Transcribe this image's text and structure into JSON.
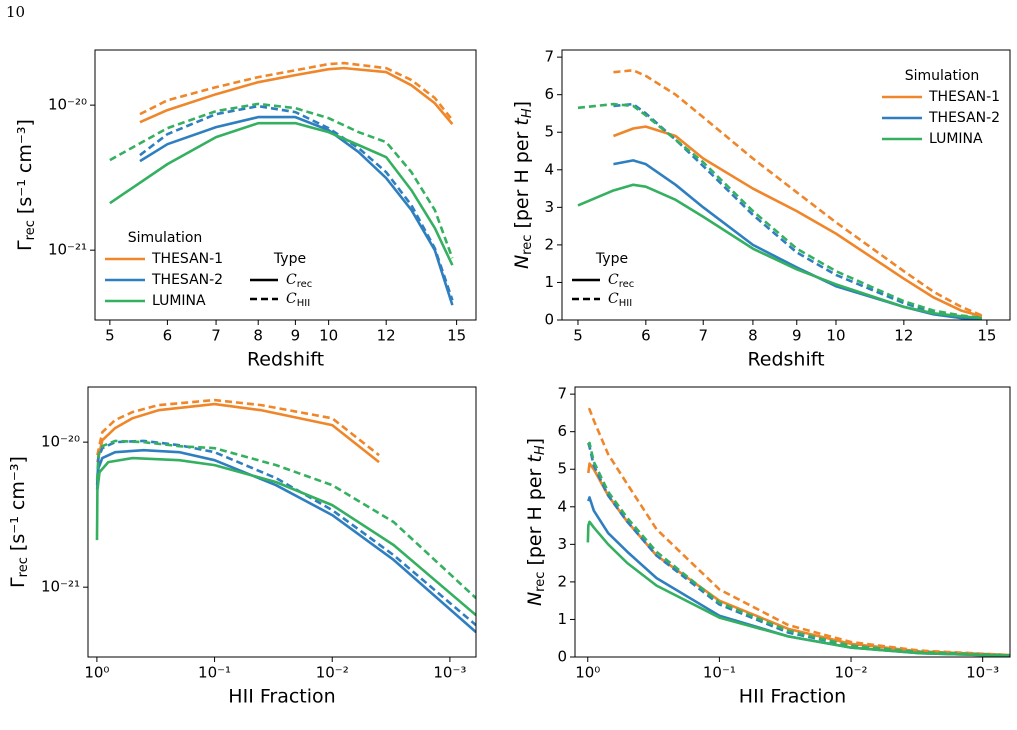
{
  "page_number": "10",
  "chart_data": [
    {
      "type": "line",
      "xlabel": "Redshift",
      "ylabel": [
        {
          "text": "Γ"
        },
        {
          "text": "rec",
          "sub": true
        },
        {
          "text": " [s⁻¹ cm⁻³]"
        }
      ],
      "xscale": "log",
      "yscale": "log",
      "xlim": [
        4.77,
        15.95
      ],
      "ylim": [
        3.3e-22,
        2.4e-20
      ],
      "xticks": [
        5,
        6,
        7,
        8,
        9,
        10,
        12,
        15
      ],
      "yticks": [
        {
          "value": 1e-21,
          "label": "10⁻²¹"
        },
        {
          "value": 1e-20,
          "label": "10⁻²⁰"
        }
      ],
      "legend": {
        "title": "Simulation",
        "loc": "lower left"
      },
      "type_legend": {
        "title": "Type",
        "loc": "lower center",
        "entries": [
          {
            "symbol": "C",
            "sub": "rec",
            "linestyle": "solid"
          },
          {
            "symbol": "C",
            "sub": "HII",
            "linestyle": "dashed"
          }
        ]
      },
      "series": [
        {
          "name": "THESAN-1",
          "color": "#f0862a",
          "linestyle": "solid",
          "x": [
            5.5,
            6,
            7,
            8,
            9,
            10,
            10.5,
            12,
            13,
            14,
            14.8
          ],
          "values": [
            7.63e-21,
            9.24e-21,
            1.19e-20,
            1.44e-20,
            1.61e-20,
            1.77e-20,
            1.8e-20,
            1.69e-20,
            1.37e-20,
            1.03e-20,
            7.4e-21
          ]
        },
        {
          "name": "THESAN-1",
          "color": "#f0862a",
          "linestyle": "dashed",
          "x": [
            5.5,
            6,
            7,
            8,
            9,
            10,
            10.5,
            12,
            13,
            14,
            14.8
          ],
          "values": [
            8.67e-21,
            1.08e-20,
            1.33e-20,
            1.56e-20,
            1.74e-20,
            1.92e-20,
            1.95e-20,
            1.8e-20,
            1.49e-20,
            1.12e-20,
            7.88e-21
          ]
        },
        {
          "name": "THESAN-2",
          "color": "#2f7fc0",
          "linestyle": "solid",
          "x": [
            5.5,
            6,
            7,
            8,
            9,
            10,
            11,
            12,
            13,
            14,
            14.8
          ],
          "values": [
            4.11e-21,
            5.38e-21,
            7.05e-21,
            8.27e-21,
            8.27e-21,
            6.72e-21,
            4.74e-21,
            3.14e-21,
            1.89e-21,
            1e-21,
            4.18e-22
          ]
        },
        {
          "name": "THESAN-2",
          "color": "#2f7fc0",
          "linestyle": "dashed",
          "x": [
            5.5,
            6,
            7,
            8,
            9,
            10,
            11,
            12,
            13,
            14,
            14.8
          ],
          "values": [
            4.52e-21,
            6.31e-21,
            8.67e-21,
            9.84e-21,
            8.95e-21,
            6.94e-21,
            5.05e-21,
            3.45e-21,
            2.04e-21,
            1.03e-21,
            4.52e-22
          ]
        },
        {
          "name": "LUMINA",
          "color": "#35b060",
          "linestyle": "solid",
          "x": [
            5,
            6,
            7,
            8,
            9,
            10,
            11,
            12,
            13,
            14,
            14.8
          ],
          "values": [
            2.11e-21,
            3.92e-21,
            6.02e-21,
            7.51e-21,
            7.51e-21,
            6.51e-21,
            5.3e-21,
            4.38e-21,
            2.59e-21,
            1.42e-21,
            7.88e-22
          ]
        },
        {
          "name": "LUMINA",
          "color": "#35b060",
          "linestyle": "dashed",
          "x": [
            5,
            6,
            7,
            8,
            9,
            10,
            11,
            12,
            13,
            14,
            14.8
          ],
          "values": [
            4.18e-21,
            6.94e-21,
            9.09e-21,
            1.02e-20,
            9.53e-21,
            8.13e-21,
            6.51e-21,
            5.56e-21,
            3.45e-21,
            1.89e-21,
            8.8e-22
          ]
        }
      ]
    },
    {
      "type": "line",
      "xlabel": "Redshift",
      "ylabel": [
        {
          "text": "N",
          "italic": true
        },
        {
          "text": "rec",
          "sub": true
        },
        {
          "text": " [per H per "
        },
        {
          "text": "t",
          "italic": true
        },
        {
          "text": "H",
          "sub": true,
          "italic": true
        },
        {
          "text": "]"
        }
      ],
      "xscale": "log",
      "yscale": "linear",
      "xlim": [
        4.79,
        15.96
      ],
      "ylim": [
        0,
        7.19
      ],
      "xticks": [
        5,
        6,
        7,
        8,
        9,
        10,
        12,
        15
      ],
      "yticks": [
        0,
        1,
        2,
        3,
        4,
        5,
        6,
        7
      ],
      "legend": {
        "title": "Simulation",
        "loc": "upper right"
      },
      "type_legend": {
        "title": "Type",
        "loc": "lower left",
        "entries": [
          {
            "symbol": "C",
            "sub": "rec",
            "linestyle": "solid"
          },
          {
            "symbol": "C",
            "sub": "HII",
            "linestyle": "dashed"
          }
        ]
      },
      "series": [
        {
          "name": "THESAN-1",
          "color": "#f0862a",
          "linestyle": "solid",
          "x": [
            5.5,
            5.8,
            6,
            6.5,
            7,
            8,
            9,
            10,
            12,
            13,
            14,
            14.8
          ],
          "values": [
            4.9,
            5.1,
            5.15,
            4.9,
            4.3,
            3.5,
            2.9,
            2.3,
            1.1,
            0.6,
            0.25,
            0.1
          ]
        },
        {
          "name": "THESAN-1",
          "color": "#f0862a",
          "linestyle": "dashed",
          "x": [
            5.5,
            5.8,
            6,
            6.5,
            7,
            8,
            9,
            10,
            12,
            13,
            14,
            14.8
          ],
          "values": [
            6.6,
            6.65,
            6.5,
            6.0,
            5.4,
            4.3,
            3.4,
            2.6,
            1.3,
            0.75,
            0.35,
            0.12
          ]
        },
        {
          "name": "THESAN-2",
          "color": "#2f7fc0",
          "linestyle": "solid",
          "x": [
            5.5,
            5.8,
            6,
            6.5,
            7,
            8,
            9,
            10,
            12,
            13,
            14,
            14.8
          ],
          "values": [
            4.15,
            4.25,
            4.15,
            3.6,
            3.0,
            2.0,
            1.4,
            0.9,
            0.35,
            0.15,
            0.05,
            0.02
          ]
        },
        {
          "name": "THESAN-2",
          "color": "#2f7fc0",
          "linestyle": "dashed",
          "x": [
            5.5,
            5.8,
            6,
            6.5,
            7,
            8,
            9,
            10,
            12,
            13,
            14,
            14.8
          ],
          "values": [
            5.7,
            5.75,
            5.5,
            4.8,
            4.1,
            2.8,
            1.8,
            1.2,
            0.45,
            0.2,
            0.08,
            0.03
          ]
        },
        {
          "name": "LUMINA",
          "color": "#35b060",
          "linestyle": "solid",
          "x": [
            5,
            5.5,
            5.8,
            6,
            6.5,
            7,
            8,
            9,
            10,
            12,
            13,
            14,
            14.8
          ],
          "values": [
            3.05,
            3.45,
            3.6,
            3.55,
            3.2,
            2.75,
            1.9,
            1.35,
            0.95,
            0.35,
            0.18,
            0.1,
            0.05
          ]
        },
        {
          "name": "LUMINA",
          "color": "#35b060",
          "linestyle": "dashed",
          "x": [
            5,
            5.5,
            5.8,
            6,
            6.5,
            7,
            8,
            9,
            10,
            12,
            13,
            14,
            14.8
          ],
          "values": [
            5.65,
            5.75,
            5.7,
            5.45,
            4.8,
            4.2,
            2.9,
            1.9,
            1.3,
            0.5,
            0.25,
            0.12,
            0.06
          ]
        }
      ]
    },
    {
      "type": "line",
      "xlabel": "HII Fraction",
      "ylabel": [
        {
          "text": "Γ"
        },
        {
          "text": "rec",
          "sub": true
        },
        {
          "text": " [s⁻¹ cm⁻³]"
        }
      ],
      "xscale": "log",
      "yscale": "log",
      "xlim": [
        1.19,
        0.0006
      ],
      "ylim": [
        3.3e-22,
        2.4e-20
      ],
      "xticks": [
        {
          "value": 1,
          "label": "10⁰"
        },
        {
          "value": 0.1,
          "label": "10⁻¹"
        },
        {
          "value": 0.01,
          "label": "10⁻²"
        },
        {
          "value": 0.001,
          "label": "10⁻³"
        }
      ],
      "yticks": [
        {
          "value": 1e-21,
          "label": "10⁻²¹"
        },
        {
          "value": 1e-20,
          "label": "10⁻²⁰"
        }
      ],
      "series": [
        {
          "name": "THESAN-1",
          "color": "#f0862a",
          "linestyle": "solid",
          "x": [
            0.99,
            0.9,
            0.7,
            0.5,
            0.3,
            0.1,
            0.04,
            0.01,
            0.004
          ],
          "values": [
            7.28e-21,
            1.03e-20,
            1.25e-20,
            1.46e-20,
            1.66e-20,
            1.83e-20,
            1.66e-20,
            1.31e-20,
            7.28e-21
          ]
        },
        {
          "name": "THESAN-1",
          "color": "#f0862a",
          "linestyle": "dashed",
          "x": [
            0.99,
            0.9,
            0.7,
            0.5,
            0.3,
            0.1,
            0.04,
            0.01,
            0.004
          ],
          "values": [
            8.13e-21,
            1.17e-20,
            1.42e-20,
            1.61e-20,
            1.8e-20,
            1.95e-20,
            1.8e-20,
            1.46e-20,
            8.13e-21
          ]
        },
        {
          "name": "THESAN-2",
          "color": "#2f7fc0",
          "linestyle": "solid",
          "x": [
            0.995,
            0.97,
            0.9,
            0.7,
            0.4,
            0.2,
            0.1,
            0.03,
            0.01,
            0.003,
            0.0006
          ],
          "values": [
            4.67e-21,
            6.62e-21,
            7.76e-21,
            8.53e-21,
            8.8e-21,
            8.53e-21,
            7.51e-21,
            5.05e-21,
            3.14e-21,
            1.54e-21,
            4.9e-22
          ]
        },
        {
          "name": "THESAN-2",
          "color": "#2f7fc0",
          "linestyle": "dashed",
          "x": [
            0.995,
            0.97,
            0.9,
            0.7,
            0.4,
            0.2,
            0.1,
            0.03,
            0.01,
            0.003,
            0.0006
          ],
          "values": [
            5.05e-21,
            7.76e-21,
            9.09e-21,
            1e-20,
            1.02e-20,
            9.53e-21,
            8.53e-21,
            5.65e-21,
            3.4e-21,
            1.66e-21,
            5.47e-22
          ]
        },
        {
          "name": "LUMINA",
          "color": "#35b060",
          "linestyle": "solid",
          "x": [
            0.998,
            0.99,
            0.95,
            0.8,
            0.5,
            0.2,
            0.1,
            0.03,
            0.01,
            0.003,
            0.0006
          ],
          "values": [
            2.11e-21,
            4.67e-21,
            6.21e-21,
            7.28e-21,
            7.76e-21,
            7.51e-21,
            6.94e-21,
            5.3e-21,
            3.68e-21,
            1.95e-21,
            6.41e-22
          ]
        },
        {
          "name": "LUMINA",
          "color": "#35b060",
          "linestyle": "dashed",
          "x": [
            0.995,
            0.97,
            0.9,
            0.7,
            0.4,
            0.2,
            0.1,
            0.03,
            0.01,
            0.003,
            0.0006
          ],
          "values": [
            5.47e-21,
            8.13e-21,
            9.38e-21,
            1.02e-20,
            1e-20,
            9.38e-21,
            9.09e-21,
            6.94e-21,
            5.05e-21,
            2.81e-21,
            8.4e-22
          ]
        }
      ]
    },
    {
      "type": "line",
      "xlabel": "HII Fraction",
      "ylabel": [
        {
          "text": "N",
          "italic": true
        },
        {
          "text": "rec",
          "sub": true
        },
        {
          "text": " [per H per "
        },
        {
          "text": "t",
          "italic": true
        },
        {
          "text": "H",
          "sub": true,
          "italic": true
        },
        {
          "text": "]"
        }
      ],
      "xscale": "log",
      "yscale": "linear",
      "xlim": [
        1.25,
        0.00062
      ],
      "ylim": [
        0,
        7.19
      ],
      "xticks": [
        {
          "value": 1,
          "label": "10⁰"
        },
        {
          "value": 0.1,
          "label": "10⁻¹"
        },
        {
          "value": 0.01,
          "label": "10⁻²"
        },
        {
          "value": 0.001,
          "label": "10⁻³"
        }
      ],
      "yticks": [
        0,
        1,
        2,
        3,
        4,
        5,
        6,
        7
      ],
      "series": [
        {
          "name": "THESAN-1",
          "color": "#f0862a",
          "linestyle": "solid",
          "x": [
            0.99,
            0.97,
            0.9,
            0.7,
            0.5,
            0.3,
            0.1,
            0.03,
            0.01,
            0.003,
            0.0006
          ],
          "values": [
            4.9,
            5.15,
            5.0,
            4.3,
            3.6,
            2.7,
            1.5,
            0.75,
            0.35,
            0.15,
            0.05
          ]
        },
        {
          "name": "THESAN-1",
          "color": "#f0862a",
          "linestyle": "dashed",
          "x": [
            0.99,
            0.97,
            0.9,
            0.7,
            0.5,
            0.3,
            0.1,
            0.03,
            0.01,
            0.003,
            0.0006
          ],
          "values": [
            6.6,
            6.6,
            6.3,
            5.4,
            4.6,
            3.4,
            1.8,
            0.85,
            0.4,
            0.17,
            0.05
          ]
        },
        {
          "name": "THESAN-2",
          "color": "#2f7fc0",
          "linestyle": "solid",
          "x": [
            0.99,
            0.97,
            0.9,
            0.7,
            0.5,
            0.3,
            0.1,
            0.03,
            0.01,
            0.003,
            0.0006
          ],
          "values": [
            4.15,
            4.25,
            3.9,
            3.3,
            2.8,
            2.1,
            1.1,
            0.55,
            0.25,
            0.1,
            0.03
          ]
        },
        {
          "name": "THESAN-2",
          "color": "#2f7fc0",
          "linestyle": "dashed",
          "x": [
            0.99,
            0.97,
            0.9,
            0.7,
            0.5,
            0.3,
            0.1,
            0.03,
            0.01,
            0.003,
            0.0006
          ],
          "values": [
            5.7,
            5.6,
            5.1,
            4.3,
            3.6,
            2.7,
            1.4,
            0.65,
            0.3,
            0.12,
            0.04
          ]
        },
        {
          "name": "LUMINA",
          "color": "#35b060",
          "linestyle": "solid",
          "x": [
            0.998,
            0.99,
            0.97,
            0.9,
            0.7,
            0.5,
            0.3,
            0.1,
            0.03,
            0.01,
            0.003,
            0.0006
          ],
          "values": [
            3.05,
            3.5,
            3.6,
            3.45,
            3.0,
            2.5,
            1.9,
            1.05,
            0.55,
            0.25,
            0.1,
            0.03
          ]
        },
        {
          "name": "LUMINA",
          "color": "#35b060",
          "linestyle": "dashed",
          "x": [
            0.995,
            0.97,
            0.9,
            0.7,
            0.5,
            0.3,
            0.1,
            0.03,
            0.01,
            0.003,
            0.0006
          ],
          "values": [
            5.65,
            5.7,
            5.2,
            4.4,
            3.7,
            2.8,
            1.45,
            0.7,
            0.3,
            0.13,
            0.04
          ]
        }
      ]
    }
  ]
}
